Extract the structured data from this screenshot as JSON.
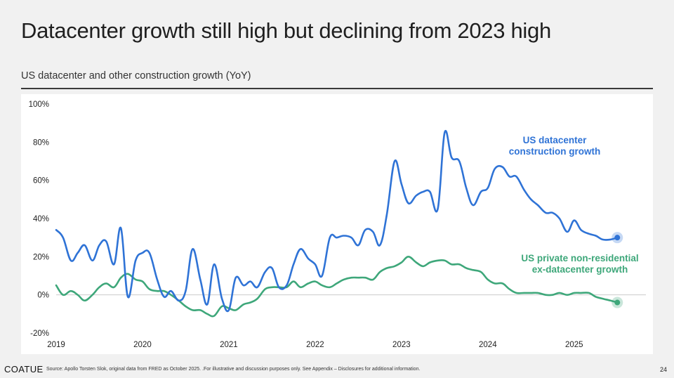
{
  "header": {
    "title": "Datacenter growth still high but declining from 2023 high",
    "subtitle": "US datacenter and other construction growth (YoY)"
  },
  "footer": {
    "logo": "COATUE",
    "source": "Source: Apollo Torsten Slok, original data from FRED as October 2025. .For illustrative and discussion purposes only. See Appendix – Disclosures for additional information.",
    "page_number": "24"
  },
  "colors": {
    "datacenter": "#2f73d6",
    "non_residential": "#3ea77a",
    "axis": "#cccccc",
    "text": "#222222"
  },
  "chart_data": {
    "type": "line",
    "title": "",
    "xlabel": "",
    "ylabel": "",
    "xlim": [
      2019.0,
      2025.75
    ],
    "ylim": [
      -20,
      100
    ],
    "x_ticks": [
      "2019",
      "2020",
      "2021",
      "2022",
      "2023",
      "2024",
      "2025"
    ],
    "y_ticks": [
      "-20%",
      "0%",
      "20%",
      "40%",
      "60%",
      "80%",
      "100%"
    ],
    "grid": false,
    "series": [
      {
        "name": "US datacenter\nconstruction growth",
        "label_lines": [
          "US datacenter",
          "construction growth"
        ],
        "color_key": "datacenter",
        "x": [
          2019.0,
          2019.08,
          2019.17,
          2019.25,
          2019.33,
          2019.42,
          2019.5,
          2019.58,
          2019.67,
          2019.75,
          2019.83,
          2019.92,
          2020.0,
          2020.08,
          2020.17,
          2020.25,
          2020.33,
          2020.42,
          2020.5,
          2020.58,
          2020.67,
          2020.75,
          2020.83,
          2020.92,
          2021.0,
          2021.08,
          2021.17,
          2021.25,
          2021.33,
          2021.42,
          2021.5,
          2021.58,
          2021.67,
          2021.75,
          2021.83,
          2021.92,
          2022.0,
          2022.08,
          2022.17,
          2022.25,
          2022.33,
          2022.42,
          2022.5,
          2022.58,
          2022.67,
          2022.75,
          2022.83,
          2022.92,
          2023.0,
          2023.08,
          2023.17,
          2023.25,
          2023.33,
          2023.42,
          2023.5,
          2023.58,
          2023.67,
          2023.75,
          2023.83,
          2023.92,
          2024.0,
          2024.08,
          2024.17,
          2024.25,
          2024.33,
          2024.42,
          2024.5,
          2024.58,
          2024.67,
          2024.75,
          2024.83,
          2024.92,
          2025.0,
          2025.08,
          2025.17,
          2025.25,
          2025.33,
          2025.42,
          2025.5
        ],
        "y": [
          34,
          30,
          18,
          22,
          26,
          18,
          26,
          28,
          16,
          35,
          -1,
          18,
          22,
          22,
          8,
          -1,
          2,
          -3,
          2,
          24,
          8,
          -5,
          16,
          -2,
          -8,
          9,
          5,
          7,
          4,
          12,
          14,
          4,
          5,
          16,
          24,
          19,
          16,
          10,
          30,
          30,
          31,
          30,
          26,
          34,
          33,
          26,
          42,
          70,
          58,
          48,
          52,
          54,
          54,
          45,
          85,
          72,
          70,
          56,
          47,
          54,
          56,
          66,
          67,
          62,
          62,
          55,
          50,
          47,
          43,
          43,
          40,
          33,
          39,
          34,
          32,
          31,
          29,
          29,
          30
        ],
        "endpoint": 30
      },
      {
        "name": "US private non-residential\nex-datacenter growth",
        "label_lines": [
          "US private non-residential",
          "ex-datacenter growth"
        ],
        "color_key": "non_residential",
        "x": [
          2019.0,
          2019.08,
          2019.17,
          2019.25,
          2019.33,
          2019.42,
          2019.5,
          2019.58,
          2019.67,
          2019.75,
          2019.83,
          2019.92,
          2020.0,
          2020.08,
          2020.17,
          2020.25,
          2020.33,
          2020.42,
          2020.5,
          2020.58,
          2020.67,
          2020.75,
          2020.83,
          2020.92,
          2021.0,
          2021.08,
          2021.17,
          2021.25,
          2021.33,
          2021.42,
          2021.5,
          2021.58,
          2021.67,
          2021.75,
          2021.83,
          2021.92,
          2022.0,
          2022.08,
          2022.17,
          2022.25,
          2022.33,
          2022.42,
          2022.5,
          2022.58,
          2022.67,
          2022.75,
          2022.83,
          2022.92,
          2023.0,
          2023.08,
          2023.17,
          2023.25,
          2023.33,
          2023.42,
          2023.5,
          2023.58,
          2023.67,
          2023.75,
          2023.83,
          2023.92,
          2024.0,
          2024.08,
          2024.17,
          2024.25,
          2024.33,
          2024.42,
          2024.5,
          2024.58,
          2024.67,
          2024.75,
          2024.83,
          2024.92,
          2025.0,
          2025.08,
          2025.17,
          2025.25,
          2025.33,
          2025.42,
          2025.5
        ],
        "y": [
          5,
          0,
          2,
          0,
          -3,
          0,
          4,
          6,
          4,
          9,
          11,
          8,
          7,
          3,
          2,
          2,
          0,
          -3,
          -6,
          -8,
          -8,
          -10,
          -11,
          -6,
          -7,
          -8,
          -5,
          -4,
          -2,
          3,
          4,
          4,
          4,
          7,
          4,
          6,
          7,
          5,
          4,
          6,
          8,
          9,
          9,
          9,
          8,
          12,
          14,
          15,
          17,
          20,
          17,
          15,
          17,
          18,
          18,
          16,
          16,
          14,
          13,
          12,
          8,
          6,
          6,
          3,
          1,
          1,
          1,
          1,
          0,
          0,
          1,
          0,
          1,
          1,
          1,
          -1,
          -2,
          -3,
          -4
        ],
        "endpoint": -4
      }
    ]
  }
}
